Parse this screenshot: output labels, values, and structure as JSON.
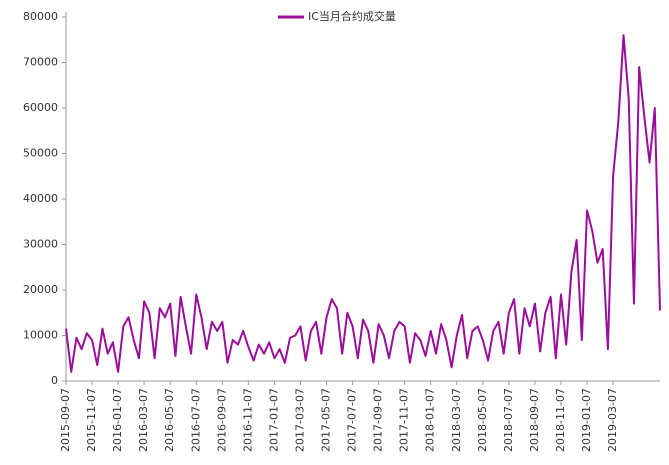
{
  "chart_data": {
    "type": "line",
    "categories": [
      "2015-09-07",
      null,
      null,
      null,
      null,
      "2015-11-07",
      null,
      null,
      null,
      null,
      "2016-01-07",
      null,
      null,
      null,
      null,
      "2016-03-07",
      null,
      null,
      null,
      null,
      "2016-05-07",
      null,
      null,
      null,
      null,
      "2016-07-07",
      null,
      null,
      null,
      null,
      "2016-09-07",
      null,
      null,
      null,
      null,
      "2016-11-07",
      null,
      null,
      null,
      null,
      "2017-01-07",
      null,
      null,
      null,
      null,
      "2017-03-07",
      null,
      null,
      null,
      null,
      "2017-05-07",
      null,
      null,
      null,
      null,
      "2017-07-07",
      null,
      null,
      null,
      null,
      "2017-09-07",
      null,
      null,
      null,
      null,
      "2017-11-07",
      null,
      null,
      null,
      null,
      "2018-01-07",
      null,
      null,
      null,
      null,
      "2018-03-07",
      null,
      null,
      null,
      null,
      "2018-05-07",
      null,
      null,
      null,
      null,
      "2018-07-07",
      null,
      null,
      null,
      null,
      "2018-09-07",
      null,
      null,
      null,
      null,
      "2018-11-07",
      null,
      null,
      null,
      null,
      "2019-01-07",
      null,
      null,
      null,
      null,
      "2019-03-07",
      null,
      null,
      null,
      null,
      null,
      null,
      null,
      null,
      null
    ],
    "series": [
      {
        "name": "IC当月合约成交量",
        "color": "#9b0e9b",
        "values": [
          11500,
          2000,
          9500,
          7000,
          10500,
          9000,
          3500,
          11500,
          6000,
          8500,
          2000,
          12000,
          14000,
          9000,
          5000,
          17500,
          15000,
          5000,
          16000,
          14000,
          17000,
          5500,
          18500,
          12000,
          6000,
          19000,
          14000,
          7000,
          13000,
          11000,
          13000,
          4000,
          9000,
          8000,
          11000,
          7500,
          4500,
          8000,
          6000,
          8500,
          5000,
          7000,
          4000,
          9500,
          10000,
          12000,
          4500,
          11000,
          13000,
          6000,
          14000,
          18000,
          16000,
          6000,
          15000,
          12000,
          5000,
          13500,
          11000,
          4000,
          12500,
          10000,
          5000,
          11000,
          13000,
          12000,
          4000,
          10500,
          9000,
          5500,
          11000,
          6000,
          12500,
          9000,
          3000,
          10000,
          14500,
          5000,
          11000,
          12000,
          9000,
          4500,
          11000,
          13000,
          6000,
          15000,
          18000,
          6000,
          16000,
          12000,
          17000,
          6500,
          15000,
          18500,
          5000,
          19000,
          8000,
          24000,
          31000,
          9000,
          37500,
          33000,
          26000,
          29000,
          7000,
          45000,
          57000,
          76000,
          62000,
          17000,
          69000,
          58000,
          48000,
          60000,
          15500
        ]
      }
    ],
    "ylim": [
      0,
      80000
    ],
    "yticks": [
      0,
      10000,
      20000,
      30000,
      40000,
      50000,
      60000,
      70000,
      80000
    ],
    "grid": false,
    "legend": "top"
  }
}
